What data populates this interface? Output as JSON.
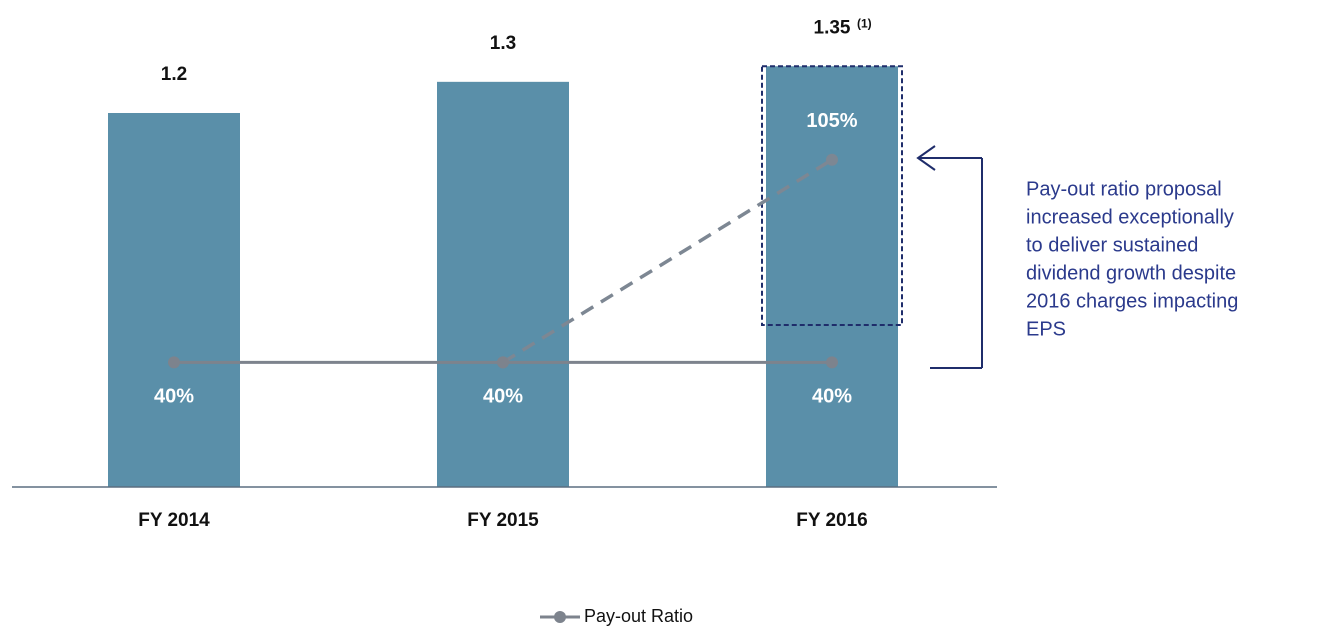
{
  "chart_data": {
    "type": "bar_line",
    "categories": [
      "FY 2014",
      "FY 2015",
      "FY 2016"
    ],
    "values": [
      1.2,
      1.3,
      1.35
    ],
    "color": "#5a8fa9",
    "ylim": [
      0,
      1.5
    ],
    "footnote_marker": "(1)",
    "y2lim": [
      0,
      150
    ],
    "series": [
      {
        "name": "Pay-out Ratio",
        "color": "#7d838d",
        "axis": "y2",
        "values": [
          40,
          40,
          40
        ],
        "value_labels": [
          "40%",
          "40%",
          "40%"
        ]
      }
    ],
    "proposed_line": {
      "color": "#7d8793",
      "dashed": true,
      "axis": "y2",
      "values": [
        null,
        40,
        105
      ],
      "value_labels": [
        null,
        null,
        "105%"
      ]
    },
    "annotation": [
      "Pay-out ratio proposal",
      "increased exceptionally",
      "to deliver sustained",
      "dividend growth despite",
      "2016 charges impacting",
      "EPS"
    ],
    "annotation_color": "#2b3a8c",
    "highlight_color": "#1f2d6b",
    "legend": "bottom"
  }
}
